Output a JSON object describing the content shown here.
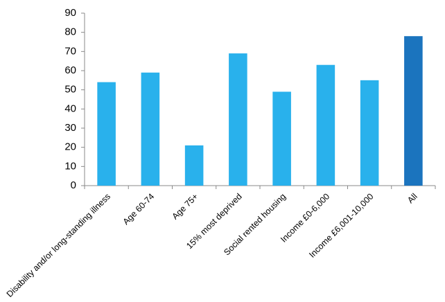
{
  "chart_data": {
    "type": "bar",
    "categories": [
      "Disability and/or long-standing illness",
      "Age 60-74",
      "Age 75+",
      "15% most deprived",
      "Social rented housing",
      "Income £0-6,000",
      "Income £6,001-10,000",
      "All"
    ],
    "values": [
      54,
      59,
      21,
      69,
      49,
      63,
      55,
      78
    ],
    "colors": [
      "#29b1ec",
      "#29b1ec",
      "#29b1ec",
      "#29b1ec",
      "#29b1ec",
      "#29b1ec",
      "#29b1ec",
      "#1b74be"
    ],
    "ylim": [
      0,
      90
    ],
    "yticks": [
      0,
      10,
      20,
      30,
      40,
      50,
      60,
      70,
      80,
      90
    ],
    "grid": false
  }
}
